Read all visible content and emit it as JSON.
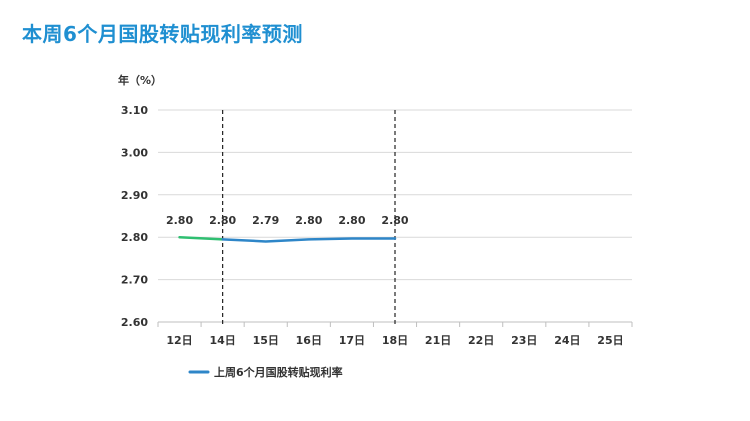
{
  "page": {
    "title": "本周6个月国股转贴现利率预测"
  },
  "colors": {
    "title": "#1f8fd1",
    "line": "#2e86c8",
    "line_start": "#2fbf71",
    "grid": "#d9d9d9",
    "axis": "#bfbfbf",
    "text": "#333333",
    "marker": "#222222"
  },
  "chart_data": {
    "type": "line",
    "ylabel": "年（%）",
    "xlabel": "",
    "categories": [
      "12日",
      "14日",
      "15日",
      "16日",
      "17日",
      "18日",
      "21日",
      "22日",
      "23日",
      "24日",
      "25日"
    ],
    "yticks": [
      "2.60",
      "2.70",
      "2.80",
      "2.90",
      "3.00",
      "3.10"
    ],
    "ylim": [
      2.6,
      3.1
    ],
    "series": [
      {
        "name": "上周6个月国股转贴现利率",
        "values": [
          2.8,
          2.795,
          2.79,
          2.795,
          2.797,
          2.797,
          null,
          null,
          null,
          null,
          null
        ],
        "labels": [
          "2.80",
          "2.80",
          "2.79",
          "2.80",
          "2.80",
          "2.80",
          null,
          null,
          null,
          null,
          null
        ]
      }
    ],
    "vlines": [
      "14日",
      "18日"
    ],
    "grid": true,
    "legend": "bottom-left"
  }
}
